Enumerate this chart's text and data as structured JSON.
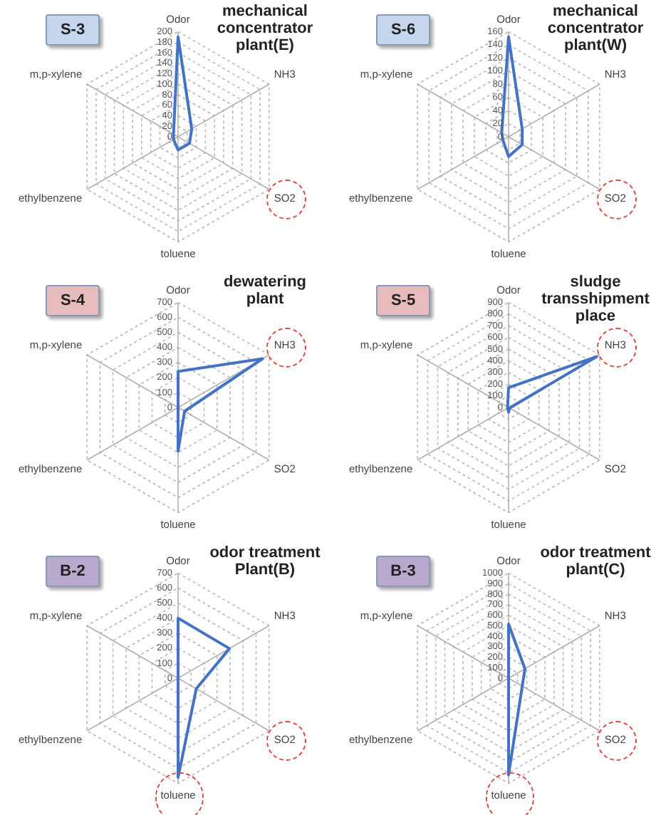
{
  "chart_data": [
    {
      "type": "radar",
      "title": "mechanical concentrator plant(E)",
      "subtitle": "S-3",
      "categories": [
        "Odor",
        "NH3",
        "SO2",
        "toluene",
        "ethylbenzene",
        "m,p-xylene"
      ],
      "series": [
        {
          "color": "#4472c4",
          "values": [
            190,
            30,
            25,
            25,
            10,
            10
          ]
        }
      ],
      "ylim": [
        0,
        200
      ],
      "yticks": [
        0,
        20,
        40,
        60,
        80,
        100,
        120,
        140,
        160,
        180,
        200
      ],
      "grid": true,
      "marker": "none"
    },
    {
      "type": "radar",
      "title": "mechanical concentrator plant(W)",
      "subtitle": "S-6",
      "categories": [
        "Odor",
        "NH3",
        "SO2",
        "toluene",
        "ethylbenzene",
        "m,p-xylene"
      ],
      "series": [
        {
          "color": "#4472c4",
          "values": [
            152,
            24,
            24,
            30,
            10,
            12
          ]
        }
      ],
      "ylim": [
        0,
        160
      ],
      "yticks": [
        0,
        20,
        40,
        60,
        80,
        100,
        120,
        140,
        160
      ],
      "grid": true,
      "marker": "none"
    },
    {
      "type": "radar",
      "title": "dewatering plant",
      "subtitle": "S-4",
      "categories": [
        "Odor",
        "NH3",
        "SO2",
        "toluene",
        "ethylbenzene",
        "m,p-xylene"
      ],
      "series": [
        {
          "color": "#4472c4",
          "values": [
            240,
            650,
            50,
            290,
            0,
            0
          ]
        }
      ],
      "ylim": [
        0,
        700
      ],
      "yticks": [
        0,
        100,
        200,
        300,
        400,
        500,
        600,
        700
      ],
      "grid": true,
      "marker": "none"
    },
    {
      "type": "radar",
      "title": "sludge transshipment place",
      "subtitle": "S-5",
      "categories": [
        "Odor",
        "NH3",
        "SO2",
        "toluene",
        "ethylbenzene",
        "m,p-xylene"
      ],
      "series": [
        {
          "color": "#4472c4",
          "values": [
            170,
            870,
            10,
            40,
            10,
            10
          ]
        }
      ],
      "ylim": [
        0,
        900
      ],
      "yticks": [
        0,
        100,
        200,
        300,
        400,
        500,
        600,
        700,
        800,
        900
      ],
      "grid": true,
      "marker": "none"
    },
    {
      "type": "radar",
      "title": "odor treatment Plant(B)",
      "subtitle": "B-2",
      "categories": [
        "Odor",
        "NH3",
        "SO2",
        "toluene",
        "ethylbenzene",
        "m,p-xylene"
      ],
      "series": [
        {
          "color": "#4472c4",
          "values": [
            400,
            395,
            140,
            660,
            0,
            0
          ]
        }
      ],
      "ylim": [
        0,
        700
      ],
      "yticks": [
        0,
        100,
        200,
        300,
        400,
        500,
        600,
        700
      ],
      "grid": true,
      "marker": "none"
    },
    {
      "type": "radar",
      "title": "odor treatment plant(C)",
      "subtitle": "B-3",
      "categories": [
        "Odor",
        "NH3",
        "SO2",
        "toluene",
        "ethylbenzene",
        "m,p-xylene"
      ],
      "series": [
        {
          "color": "#4472c4",
          "values": [
            515,
            180,
            150,
            920,
            0,
            0
          ]
        }
      ],
      "ylim": [
        0,
        1000
      ],
      "yticks": [
        0,
        100,
        200,
        300,
        400,
        500,
        600,
        700,
        800,
        900,
        1000
      ],
      "grid": true,
      "marker": "none"
    }
  ]
}
